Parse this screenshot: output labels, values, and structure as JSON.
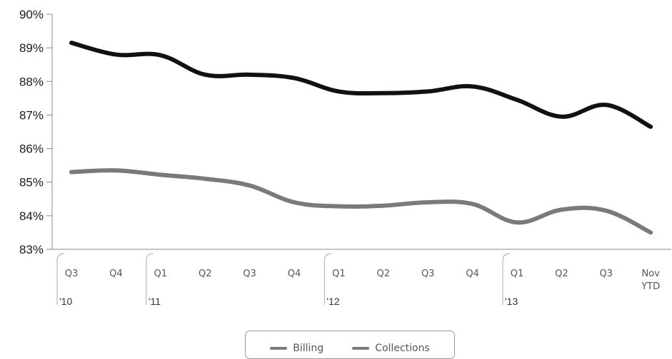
{
  "chart_data": {
    "type": "line",
    "categories": [
      "Q3",
      "Q4",
      "Q1",
      "Q2",
      "Q3",
      "Q4",
      "Q1",
      "Q2",
      "Q3",
      "Q4",
      "Q1",
      "Q2",
      "Q3",
      "Nov YTD"
    ],
    "x_tick_labels": [
      [
        "Q3"
      ],
      [
        "Q4"
      ],
      [
        "Q1"
      ],
      [
        "Q2"
      ],
      [
        "Q3"
      ],
      [
        "Q4"
      ],
      [
        "Q1"
      ],
      [
        "Q2"
      ],
      [
        "Q3"
      ],
      [
        "Q4"
      ],
      [
        "Q1"
      ],
      [
        "Q2"
      ],
      [
        "Q3"
      ],
      [
        "Nov",
        "YTD"
      ]
    ],
    "year_groups": [
      {
        "label": "'10",
        "start": 0,
        "end": 1
      },
      {
        "label": "'11",
        "start": 2,
        "end": 5
      },
      {
        "label": "'12",
        "start": 6,
        "end": 9
      },
      {
        "label": "'13",
        "start": 10,
        "end": 13
      }
    ],
    "series": [
      {
        "name": "Billing",
        "color": "#111111",
        "values": [
          89.15,
          88.8,
          88.78,
          88.2,
          88.2,
          88.1,
          87.7,
          87.65,
          87.7,
          87.85,
          87.45,
          86.95,
          87.3,
          86.65
        ]
      },
      {
        "name": "Collections",
        "color": "#7a7a7a",
        "values": [
          85.3,
          85.35,
          85.22,
          85.1,
          84.9,
          84.4,
          84.28,
          84.3,
          84.4,
          84.35,
          83.8,
          84.18,
          84.15,
          83.5
        ]
      }
    ],
    "y_ticks": [
      90,
      89,
      88,
      87,
      86,
      85,
      84,
      83
    ],
    "y_tick_labels": [
      "90%",
      "89%",
      "88%",
      "87%",
      "86%",
      "85%",
      "84%",
      "83%"
    ],
    "ylim": [
      83,
      90
    ],
    "title": "",
    "xlabel": "",
    "ylabel": "",
    "legend_position": "bottom-center",
    "grid": false
  },
  "legend": {
    "billing_label": "Billing",
    "collections_label": "Collections",
    "billing_color": "#7a7a7a",
    "collections_color": "#7a7a7a"
  }
}
